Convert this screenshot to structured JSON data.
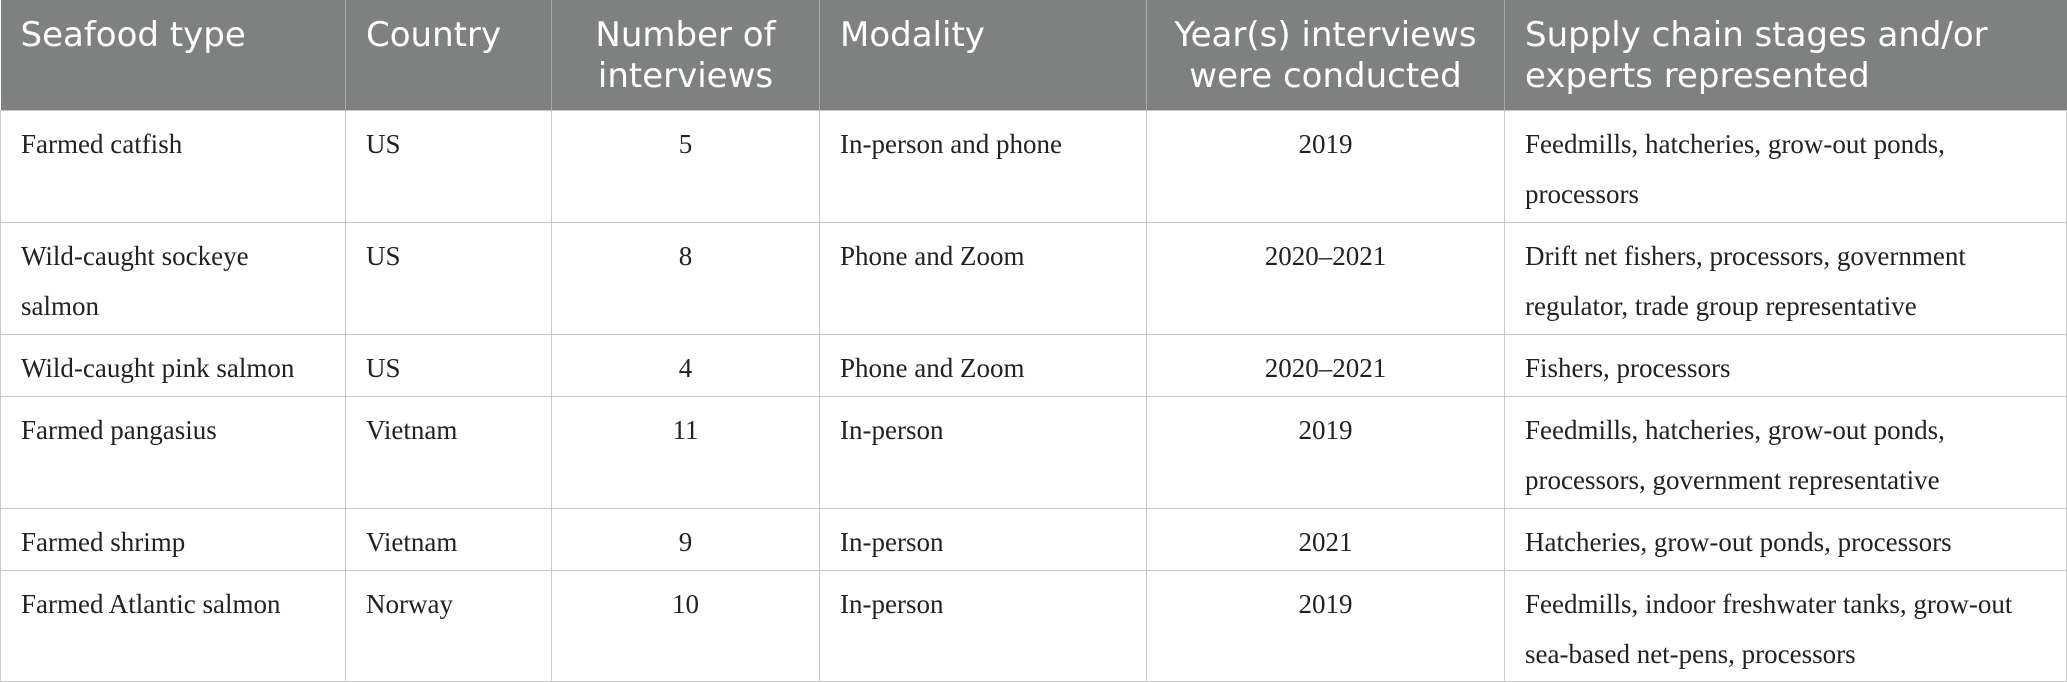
{
  "table": {
    "headers": [
      "Seafood type",
      "Country",
      "Number of interviews",
      "Modality",
      "Year(s) interviews were conducted",
      "Supply chain stages and/or experts represented"
    ],
    "rows": [
      [
        "Farmed catfish",
        "US",
        "5",
        "In-person and phone",
        "2019",
        "Feedmills, hatcheries, grow-out ponds, processors"
      ],
      [
        "Wild-caught sockeye salmon",
        "US",
        "8",
        "Phone and Zoom",
        "2020–2021",
        "Drift net fishers, processors, government regulator, trade group representative"
      ],
      [
        "Wild-caught pink salmon",
        "US",
        "4",
        "Phone and Zoom",
        "2020–2021",
        "Fishers, processors"
      ],
      [
        "Farmed pangasius",
        "Vietnam",
        "11",
        "In-person",
        "2019",
        "Feedmills, hatcheries, grow-out ponds, processors, government representative"
      ],
      [
        "Farmed shrimp",
        "Vietnam",
        "9",
        "In-person",
        "2021",
        "Hatcheries, grow-out ponds, processors"
      ],
      [
        "Farmed Atlantic salmon",
        "Norway",
        "10",
        "In-person",
        "2019",
        "Feedmills, indoor freshwater tanks, grow-out sea-based net-pens, processors"
      ]
    ]
  },
  "colors": {
    "header_background": "#7f8180",
    "header_text": "#ffffff",
    "grid_line": "#c8c8c8"
  }
}
